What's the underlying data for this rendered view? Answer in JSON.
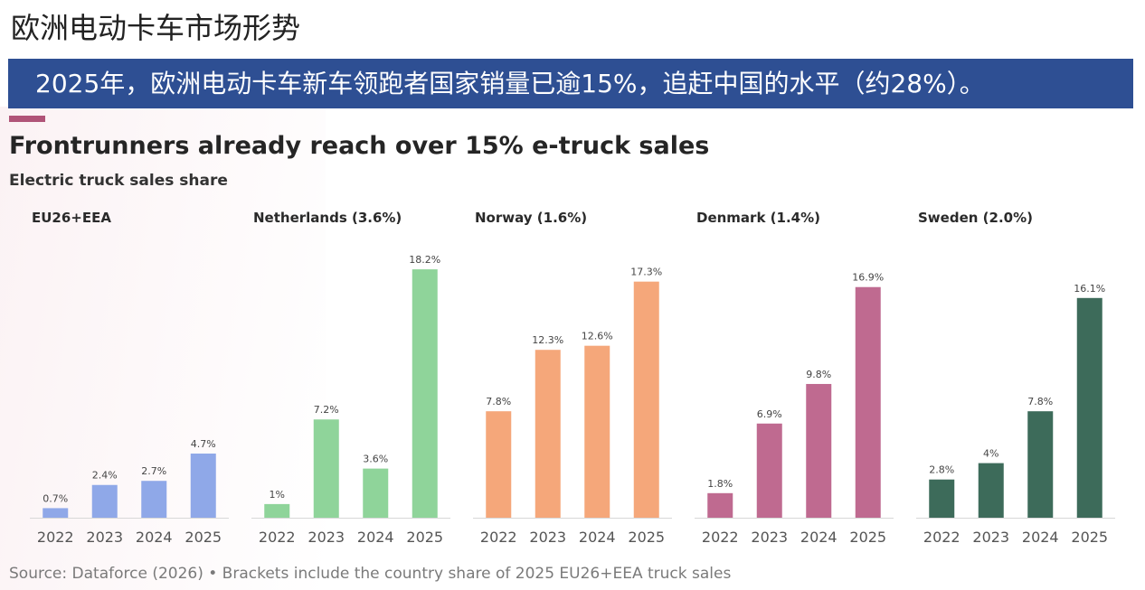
{
  "page_title": "欧洲电动卡车市场形势",
  "banner_text": "2025年，欧洲电动卡车新车领跑者国家销量已逾15%，追赶中国的水平（约28%）。",
  "colors": {
    "banner": "#2e4f93",
    "accent": "#b05478",
    "EU26+EEA": "#8fa8e8",
    "Netherlands": "#8fd49a",
    "Norway": "#f5a77a",
    "Denmark": "#bf6a90",
    "Sweden": "#3d6b5a"
  },
  "chart_data": {
    "type": "bar",
    "title": "Frontrunners already reach over 15% e-truck sales",
    "subtitle": "Electric truck sales share",
    "source": "Source: Dataforce (2026) • Brackets include the country share of 2025 EU26+EEA truck sales",
    "ylim": [
      0,
      19
    ],
    "grid": false,
    "panels": [
      {
        "name": "EU26+EEA",
        "categories": [
          "2022",
          "2023",
          "2024",
          "2025"
        ],
        "values": [
          0.7,
          2.4,
          2.7,
          4.7
        ],
        "labels": [
          "0.7%",
          "2.4%",
          "2.7%",
          "4.7%"
        ]
      },
      {
        "name": "Netherlands (3.6%)",
        "categories": [
          "2022",
          "2023",
          "2024",
          "2025"
        ],
        "values": [
          1,
          7.2,
          3.6,
          18.2
        ],
        "labels": [
          "1%",
          "7.2%",
          "3.6%",
          "18.2%"
        ]
      },
      {
        "name": "Norway (1.6%)",
        "categories": [
          "2022",
          "2023",
          "2024",
          "2025"
        ],
        "values": [
          7.8,
          12.3,
          12.6,
          17.3
        ],
        "labels": [
          "7.8%",
          "12.3%",
          "12.6%",
          "17.3%"
        ]
      },
      {
        "name": "Denmark (1.4%)",
        "categories": [
          "2022",
          "2023",
          "2024",
          "2025"
        ],
        "values": [
          1.8,
          6.9,
          9.8,
          16.9
        ],
        "labels": [
          "1.8%",
          "6.9%",
          "9.8%",
          "16.9%"
        ]
      },
      {
        "name": "Sweden (2.0%)",
        "categories": [
          "2022",
          "2023",
          "2024",
          "2025"
        ],
        "values": [
          2.8,
          4,
          7.8,
          16.1
        ],
        "labels": [
          "2.8%",
          "4%",
          "7.8%",
          "16.1%"
        ]
      }
    ]
  }
}
